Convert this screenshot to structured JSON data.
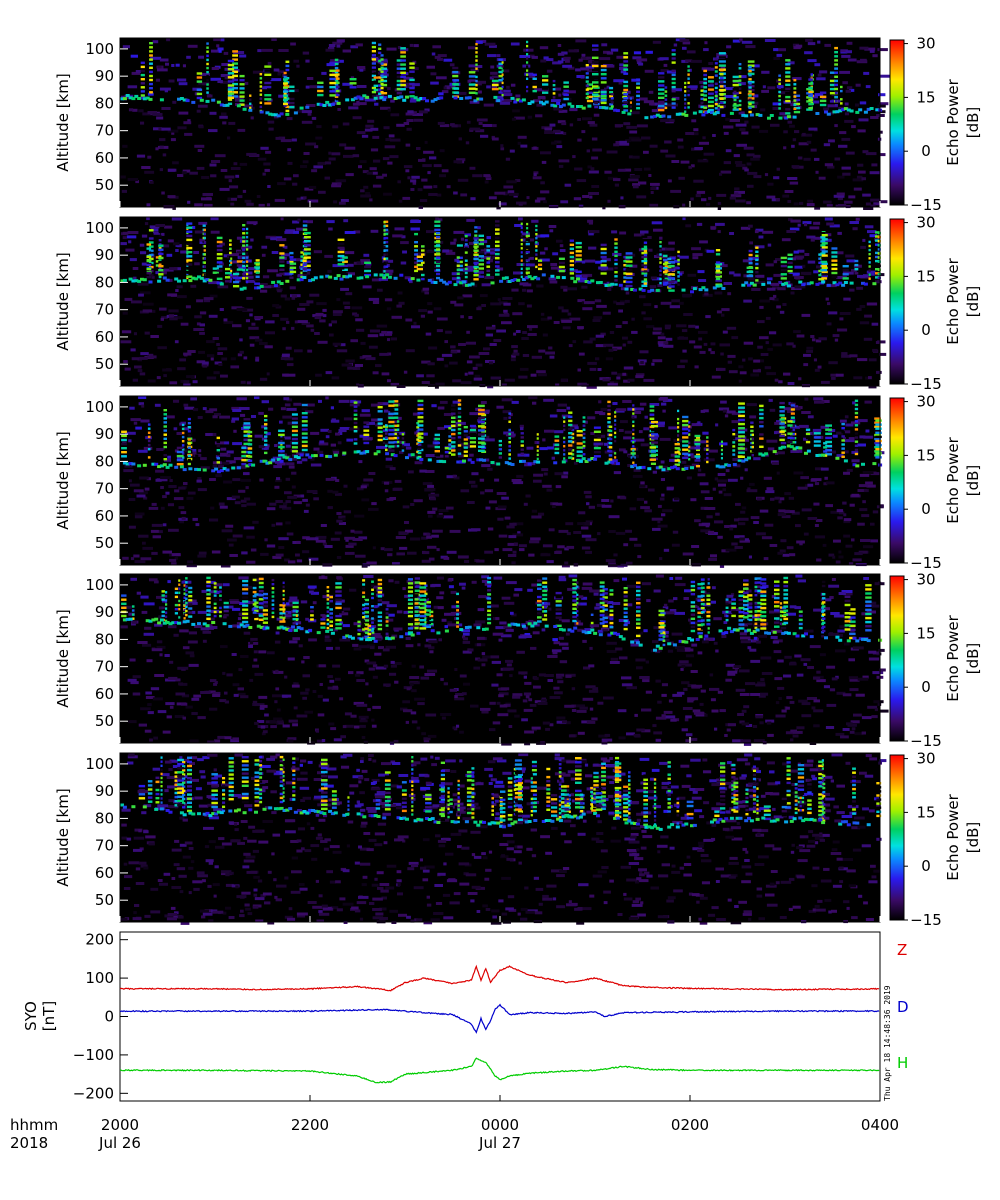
{
  "chart_data": [
    {
      "type": "heatmap",
      "panel": 1,
      "ylabel": "Altitude [km]",
      "ytick_labels": [
        "50",
        "60",
        "70",
        "80",
        "90",
        "100"
      ],
      "yticks": [
        50,
        60,
        70,
        80,
        90,
        100
      ],
      "ylim": [
        42,
        104
      ],
      "xlim_hours": [
        20,
        28
      ],
      "colorbar": {
        "label": "Echo Power",
        "unit": "[dB]",
        "range": [
          -15,
          31
        ],
        "ticks": [
          -15,
          0,
          15,
          30
        ],
        "tick_labels": [
          "−15",
          "0",
          "15",
          "30"
        ]
      },
      "echo_layer_altitude_km": [
        [
          20.0,
          83
        ],
        [
          21.0,
          81
        ],
        [
          21.6,
          76
        ],
        [
          22.5,
          83
        ],
        [
          23.2,
          82
        ],
        [
          24.0,
          82
        ],
        [
          25.0,
          79
        ],
        [
          25.5,
          76
        ],
        [
          26.2,
          77
        ],
        [
          27.0,
          75
        ],
        [
          27.6,
          78
        ]
      ],
      "seed": 11
    },
    {
      "type": "heatmap",
      "panel": 2,
      "ylabel": "Altitude [km]",
      "ytick_labels": [
        "50",
        "60",
        "70",
        "80",
        "90",
        "100"
      ],
      "yticks": [
        50,
        60,
        70,
        80,
        90,
        100
      ],
      "ylim": [
        42,
        104
      ],
      "xlim_hours": [
        20,
        28
      ],
      "colorbar": {
        "label": "Echo Power",
        "unit": "[dB]",
        "range": [
          -15,
          31
        ],
        "ticks": [
          -15,
          0,
          15,
          30
        ],
        "tick_labels": [
          "−15",
          "0",
          "15",
          "30"
        ]
      },
      "echo_layer_altitude_km": [
        [
          20.0,
          81
        ],
        [
          20.8,
          82
        ],
        [
          21.2,
          78
        ],
        [
          22.0,
          82
        ],
        [
          22.8,
          83
        ],
        [
          23.6,
          80
        ],
        [
          24.5,
          83
        ],
        [
          25.2,
          79
        ],
        [
          25.8,
          77
        ],
        [
          26.6,
          80
        ],
        [
          27.6,
          80
        ]
      ],
      "seed": 23
    },
    {
      "type": "heatmap",
      "panel": 3,
      "ylabel": "Altitude [km]",
      "ytick_labels": [
        "50",
        "60",
        "70",
        "80",
        "90",
        "100"
      ],
      "yticks": [
        50,
        60,
        70,
        80,
        90,
        100
      ],
      "ylim": [
        42,
        104
      ],
      "xlim_hours": [
        20,
        28
      ],
      "colorbar": {
        "label": "Echo Power",
        "unit": "[dB]",
        "range": [
          -15,
          31
        ],
        "ticks": [
          -15,
          0,
          15,
          30
        ],
        "tick_labels": [
          "−15",
          "0",
          "15",
          "30"
        ]
      },
      "echo_layer_altitude_km": [
        [
          20.0,
          80
        ],
        [
          21.0,
          77
        ],
        [
          21.8,
          82
        ],
        [
          22.6,
          84
        ],
        [
          23.4,
          81
        ],
        [
          24.2,
          80
        ],
        [
          25.0,
          81
        ],
        [
          25.6,
          78
        ],
        [
          26.4,
          79
        ],
        [
          27.0,
          86
        ],
        [
          27.8,
          79
        ]
      ],
      "seed": 37
    },
    {
      "type": "heatmap",
      "panel": 4,
      "ylabel": "Altitude [km]",
      "ytick_labels": [
        "50",
        "60",
        "70",
        "80",
        "90",
        "100"
      ],
      "yticks": [
        50,
        60,
        70,
        80,
        90,
        100
      ],
      "ylim": [
        42,
        104
      ],
      "xlim_hours": [
        20,
        28
      ],
      "colorbar": {
        "label": "Echo Power",
        "unit": "[dB]",
        "range": [
          -15,
          31
        ],
        "ticks": [
          -15,
          0,
          15,
          30
        ],
        "tick_labels": [
          "−15",
          "0",
          "15",
          "30"
        ]
      },
      "echo_layer_altitude_km": [
        [
          20.0,
          88
        ],
        [
          21.0,
          86
        ],
        [
          22.0,
          84
        ],
        [
          22.6,
          80
        ],
        [
          23.4,
          84
        ],
        [
          24.4,
          86
        ],
        [
          25.2,
          82
        ],
        [
          25.6,
          77
        ],
        [
          26.4,
          84
        ],
        [
          27.2,
          82
        ],
        [
          27.8,
          80
        ]
      ],
      "seed": 53
    },
    {
      "type": "heatmap",
      "panel": 5,
      "ylabel": "Altitude [km]",
      "ytick_labels": [
        "50",
        "60",
        "70",
        "80",
        "90",
        "100"
      ],
      "yticks": [
        50,
        60,
        70,
        80,
        90,
        100
      ],
      "ylim": [
        42,
        104
      ],
      "xlim_hours": [
        20,
        28
      ],
      "colorbar": {
        "label": "Echo Power",
        "unit": "[dB]",
        "range": [
          -15,
          31
        ],
        "ticks": [
          -15,
          0,
          15,
          30
        ],
        "tick_labels": [
          "−15",
          "0",
          "15",
          "30"
        ]
      },
      "echo_layer_altitude_km": [
        [
          20.0,
          85
        ],
        [
          20.8,
          82
        ],
        [
          21.6,
          84
        ],
        [
          22.4,
          82
        ],
        [
          23.2,
          80
        ],
        [
          24.0,
          78
        ],
        [
          25.0,
          82
        ],
        [
          25.6,
          77
        ],
        [
          26.4,
          80
        ],
        [
          27.2,
          80
        ],
        [
          27.8,
          78
        ]
      ],
      "seed": 71
    },
    {
      "type": "line",
      "panel": 6,
      "ylabel": "SYO",
      "yunit": "[nT]",
      "yticks": [
        -200,
        -100,
        0,
        100,
        200
      ],
      "ytick_labels": [
        "−200",
        "−100",
        "0",
        "100",
        "200"
      ],
      "ylim": [
        -220,
        220
      ],
      "xlim_hours": [
        20,
        28
      ],
      "series": [
        {
          "name": "Z",
          "color": "#dd0000",
          "points": [
            [
              20.0,
              72
            ],
            [
              21.0,
              72
            ],
            [
              21.5,
              70
            ],
            [
              22.0,
              72
            ],
            [
              22.5,
              78
            ],
            [
              22.85,
              68
            ],
            [
              23.0,
              88
            ],
            [
              23.2,
              100
            ],
            [
              23.5,
              86
            ],
            [
              23.7,
              95
            ],
            [
              23.75,
              130
            ],
            [
              23.8,
              95
            ],
            [
              23.85,
              125
            ],
            [
              23.9,
              90
            ],
            [
              24.0,
              120
            ],
            [
              24.1,
              130
            ],
            [
              24.3,
              108
            ],
            [
              24.5,
              98
            ],
            [
              24.7,
              88
            ],
            [
              25.0,
              100
            ],
            [
              25.3,
              80
            ],
            [
              25.6,
              76
            ],
            [
              26.0,
              73
            ],
            [
              27.0,
              70
            ],
            [
              28.0,
              72
            ]
          ]
        },
        {
          "name": "D",
          "color": "#0000cc",
          "points": [
            [
              20.0,
              14
            ],
            [
              21.0,
              14
            ],
            [
              22.0,
              14
            ],
            [
              22.8,
              18
            ],
            [
              23.2,
              10
            ],
            [
              23.5,
              5
            ],
            [
              23.7,
              -20
            ],
            [
              23.75,
              -42
            ],
            [
              23.8,
              -5
            ],
            [
              23.85,
              -35
            ],
            [
              23.9,
              -10
            ],
            [
              23.95,
              20
            ],
            [
              24.0,
              30
            ],
            [
              24.1,
              5
            ],
            [
              24.3,
              10
            ],
            [
              24.7,
              8
            ],
            [
              25.0,
              12
            ],
            [
              25.1,
              0
            ],
            [
              25.3,
              10
            ],
            [
              26.0,
              12
            ],
            [
              27.0,
              14
            ],
            [
              28.0,
              14
            ]
          ]
        },
        {
          "name": "H",
          "color": "#00cc00",
          "points": [
            [
              20.0,
              -140
            ],
            [
              21.0,
              -140
            ],
            [
              22.0,
              -142
            ],
            [
              22.5,
              -155
            ],
            [
              22.7,
              -172
            ],
            [
              22.85,
              -170
            ],
            [
              23.0,
              -150
            ],
            [
              23.5,
              -140
            ],
            [
              23.7,
              -130
            ],
            [
              23.75,
              -108
            ],
            [
              23.85,
              -120
            ],
            [
              23.95,
              -155
            ],
            [
              24.0,
              -165
            ],
            [
              24.1,
              -155
            ],
            [
              24.3,
              -148
            ],
            [
              24.7,
              -142
            ],
            [
              25.0,
              -140
            ],
            [
              25.3,
              -130
            ],
            [
              25.6,
              -138
            ],
            [
              26.0,
              -140
            ],
            [
              27.0,
              -140
            ],
            [
              28.0,
              -140
            ]
          ]
        }
      ]
    }
  ],
  "x_axis": {
    "row_labels": [
      "hhmm",
      "2018"
    ],
    "ticks": [
      {
        "hour": 20,
        "time": "2000",
        "date": "Jul 26"
      },
      {
        "hour": 22,
        "time": "2200",
        "date": ""
      },
      {
        "hour": 24,
        "time": "0000",
        "date": "Jul 27"
      },
      {
        "hour": 26,
        "time": "0200",
        "date": ""
      },
      {
        "hour": 28,
        "time": "0400",
        "date": ""
      }
    ]
  },
  "timestamp": "Thu Apr 18 14:48:36 2019"
}
